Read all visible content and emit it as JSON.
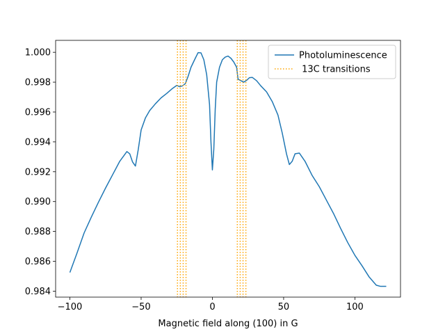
{
  "chart_data": {
    "type": "line",
    "xlabel": "Magnetic field along (100) in G",
    "ylabel": "",
    "xlim": [
      -110,
      132
    ],
    "ylim": [
      0.9836,
      1.0008
    ],
    "xticks": [
      -100,
      -50,
      0,
      50,
      100
    ],
    "xtick_labels": [
      "−100",
      "−50",
      "0",
      "50",
      "100"
    ],
    "yticks": [
      0.984,
      0.986,
      0.988,
      0.99,
      0.992,
      0.994,
      0.996,
      0.998,
      1.0
    ],
    "ytick_labels": [
      "0.984",
      "0.986",
      "0.988",
      "0.990",
      "0.992",
      "0.994",
      "0.996",
      "0.998",
      "1.000"
    ],
    "grid": false,
    "legend_position": "top-right",
    "series": [
      {
        "name": "Photoluminescence",
        "color": "#1f77b4",
        "style": "solid",
        "points": [
          [
            -100,
            0.98525
          ],
          [
            -95,
            0.98655
          ],
          [
            -90,
            0.9879
          ],
          [
            -85,
            0.98895
          ],
          [
            -80,
            0.98995
          ],
          [
            -75,
            0.9909
          ],
          [
            -70,
            0.9918
          ],
          [
            -65,
            0.9927
          ],
          [
            -60,
            0.99335
          ],
          [
            -58,
            0.9932
          ],
          [
            -56,
            0.99265
          ],
          [
            -54,
            0.99238
          ],
          [
            -52,
            0.9935
          ],
          [
            -50,
            0.9948
          ],
          [
            -47,
            0.9956
          ],
          [
            -44,
            0.9961
          ],
          [
            -40,
            0.99655
          ],
          [
            -36,
            0.99695
          ],
          [
            -32,
            0.99725
          ],
          [
            -28,
            0.99758
          ],
          [
            -25,
            0.99778
          ],
          [
            -23,
            0.9977
          ],
          [
            -21,
            0.99775
          ],
          [
            -19,
            0.9979
          ],
          [
            -17,
            0.9984
          ],
          [
            -15,
            0.999
          ],
          [
            -12,
            0.9996
          ],
          [
            -10,
            0.99998
          ],
          [
            -8,
            0.99996
          ],
          [
            -6,
            0.9995
          ],
          [
            -4,
            0.9985
          ],
          [
            -2,
            0.9965
          ],
          [
            -1,
            0.994
          ],
          [
            0,
            0.99212
          ],
          [
            1,
            0.9935
          ],
          [
            2,
            0.9962
          ],
          [
            3,
            0.998
          ],
          [
            5,
            0.999
          ],
          [
            7,
            0.9995
          ],
          [
            9,
            0.99968
          ],
          [
            11,
            0.99975
          ],
          [
            13,
            0.9996
          ],
          [
            15,
            0.99935
          ],
          [
            17,
            0.999
          ],
          [
            18,
            0.9982
          ],
          [
            20,
            0.9981
          ],
          [
            22,
            0.998
          ],
          [
            24,
            0.99812
          ],
          [
            26,
            0.9983
          ],
          [
            28,
            0.99832
          ],
          [
            31,
            0.9981
          ],
          [
            34,
            0.99775
          ],
          [
            38,
            0.99735
          ],
          [
            42,
            0.9967
          ],
          [
            46,
            0.9958
          ],
          [
            49,
            0.9946
          ],
          [
            52,
            0.9932
          ],
          [
            54,
            0.99248
          ],
          [
            56,
            0.9927
          ],
          [
            58,
            0.9932
          ],
          [
            61,
            0.99325
          ],
          [
            65,
            0.9927
          ],
          [
            70,
            0.99175
          ],
          [
            75,
            0.991
          ],
          [
            80,
            0.9901
          ],
          [
            85,
            0.9892
          ],
          [
            90,
            0.9882
          ],
          [
            95,
            0.98725
          ],
          [
            100,
            0.9864
          ],
          [
            105,
            0.9857
          ],
          [
            110,
            0.98495
          ],
          [
            115,
            0.9844
          ],
          [
            118,
            0.98432
          ],
          [
            122,
            0.98432
          ]
        ]
      },
      {
        "name": " 13C transitions",
        "color": "#ffa500",
        "style": "dotted",
        "vlines": [
          -24.5,
          -22.5,
          -20.5,
          -18.5,
          17.5,
          19.5,
          21.5,
          23.5
        ]
      }
    ]
  }
}
